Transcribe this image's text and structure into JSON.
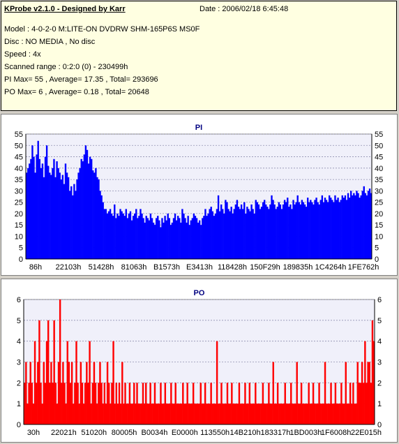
{
  "header": {
    "title": "KProbe v2.1.0 - Designed by Karr",
    "date": "Date : 2006/02/18 6:45:48",
    "model": "Model : 4-0-2-0 M:LITE-ON DVDRW SHM-165P6S MS0F",
    "disc": "Disc : NO MEDIA , No disc",
    "speed": "Speed : 4x",
    "range": "Scanned range : 0:2:0 (0) - 230499h",
    "pi": "PI Max= 55 , Average= 17.35 , Total= 293696",
    "po": "PO Max= 6 , Average= 0.18 , Total= 20648"
  },
  "chart_data": [
    {
      "type": "bar",
      "title": "PI",
      "ylim": [
        0,
        55
      ],
      "yticks": [
        0,
        5,
        10,
        15,
        20,
        25,
        30,
        35,
        40,
        45,
        50,
        55
      ],
      "xticks": [
        "86h",
        "22103h",
        "51428h",
        "81063h",
        "B1573h",
        "E3413h",
        "118428h",
        "150F29h",
        "189835h",
        "1C4264h",
        "1FE762h"
      ],
      "color": "#0000ff",
      "grid": true,
      "values": [
        38,
        40,
        42,
        44,
        50,
        45,
        38,
        46,
        52,
        44,
        40,
        42,
        36,
        45,
        50,
        41,
        38,
        37,
        40,
        44,
        36,
        43,
        40,
        38,
        35,
        37,
        33,
        42,
        38,
        36,
        30,
        32,
        28,
        33,
        30,
        35,
        38,
        40,
        44,
        43,
        46,
        50,
        48,
        42,
        45,
        44,
        39,
        38,
        40,
        36,
        35,
        30,
        28,
        25,
        22,
        22,
        20,
        21,
        22,
        20,
        19,
        24,
        18,
        20,
        19,
        22,
        21,
        20,
        19,
        22,
        18,
        20,
        21,
        17,
        19,
        20,
        22,
        18,
        19,
        22,
        20,
        18,
        16,
        19,
        18,
        17,
        20,
        18,
        16,
        15,
        18,
        19,
        17,
        14,
        18,
        16,
        19,
        17,
        20,
        18,
        15,
        16,
        18,
        20,
        17,
        19,
        18,
        16,
        22,
        20,
        18,
        16,
        19,
        15,
        17,
        18,
        20,
        19,
        18,
        16,
        17,
        15,
        18,
        19,
        22,
        19,
        20,
        22,
        23,
        21,
        19,
        20,
        22,
        28,
        21,
        24,
        22,
        20,
        26,
        25,
        22,
        21,
        23,
        20,
        22,
        24,
        26,
        23,
        22,
        24,
        22,
        25,
        20,
        23,
        22,
        21,
        24,
        22,
        20,
        26,
        25,
        24,
        22,
        23,
        25,
        26,
        24,
        23,
        22,
        24,
        28,
        26,
        24,
        22,
        23,
        25,
        24,
        22,
        24,
        26,
        25,
        27,
        23,
        24,
        22,
        26,
        24,
        25,
        28,
        25,
        24,
        26,
        25,
        24,
        23,
        27,
        25,
        26,
        25,
        24,
        26,
        27,
        25,
        24,
        26,
        28,
        25,
        27,
        26,
        25,
        28,
        27,
        26,
        25,
        28,
        26,
        27,
        25,
        26,
        28,
        27,
        28,
        26,
        29,
        27,
        30,
        28,
        29,
        28,
        30,
        29,
        27,
        28,
        30,
        32,
        29,
        28,
        30,
        31,
        29
      ]
    },
    {
      "type": "bar",
      "title": "PO",
      "ylim": [
        0,
        6
      ],
      "yticks": [
        0,
        1,
        2,
        3,
        4,
        5,
        6
      ],
      "xticks": [
        "30h",
        "22021h",
        "51020h",
        "80005h",
        "B0034h",
        "E0000h",
        "113550h",
        "14B210h",
        "183317h",
        "1BD003h",
        "1F6008h",
        "22E015h"
      ],
      "color": "#ff0000",
      "grid": true,
      "values": [
        2,
        3,
        1,
        2,
        3,
        2,
        1,
        4,
        2,
        3,
        5,
        2,
        1,
        3,
        2,
        4,
        5,
        2,
        3,
        2,
        5,
        2,
        1,
        3,
        6,
        2,
        3,
        2,
        1,
        4,
        3,
        2,
        3,
        1,
        2,
        4,
        2,
        1,
        3,
        2,
        1,
        2,
        3,
        2,
        4,
        1,
        2,
        3,
        2,
        1,
        2,
        3,
        2,
        1,
        2,
        1,
        3,
        2,
        1,
        2,
        4,
        1,
        2,
        1,
        2,
        1,
        3,
        1,
        2,
        1,
        1,
        2,
        1,
        1,
        2,
        1,
        2,
        1,
        1,
        1,
        2,
        1,
        2,
        1,
        1,
        2,
        1,
        1,
        2,
        1,
        1,
        1,
        2,
        1,
        1,
        2,
        1,
        1,
        1,
        2,
        1,
        1,
        2,
        1,
        1,
        1,
        1,
        2,
        1,
        1,
        2,
        1,
        1,
        1,
        2,
        1,
        1,
        1,
        1,
        2,
        1,
        1,
        2,
        1,
        1,
        1,
        2,
        1,
        1,
        1,
        4,
        1,
        1,
        2,
        1,
        1,
        1,
        2,
        1,
        1,
        2,
        1,
        1,
        1,
        1,
        2,
        1,
        1,
        1,
        2,
        1,
        1,
        2,
        1,
        1,
        1,
        2,
        1,
        1,
        1,
        1,
        2,
        1,
        1,
        1,
        2,
        1,
        1,
        3,
        1,
        1,
        2,
        1,
        1,
        1,
        1,
        2,
        1,
        1,
        1,
        2,
        1,
        1,
        1,
        3,
        1,
        1,
        2,
        1,
        1,
        1,
        1,
        2,
        1,
        1,
        2,
        1,
        1,
        1,
        2,
        1,
        1,
        1,
        3,
        1,
        1,
        1,
        2,
        1,
        1,
        2,
        1,
        1,
        1,
        2,
        1,
        1,
        3,
        1,
        1,
        2,
        1,
        2,
        1,
        1,
        3,
        2,
        2,
        3,
        2,
        4,
        2,
        3,
        3,
        2,
        5,
        4
      ]
    }
  ]
}
